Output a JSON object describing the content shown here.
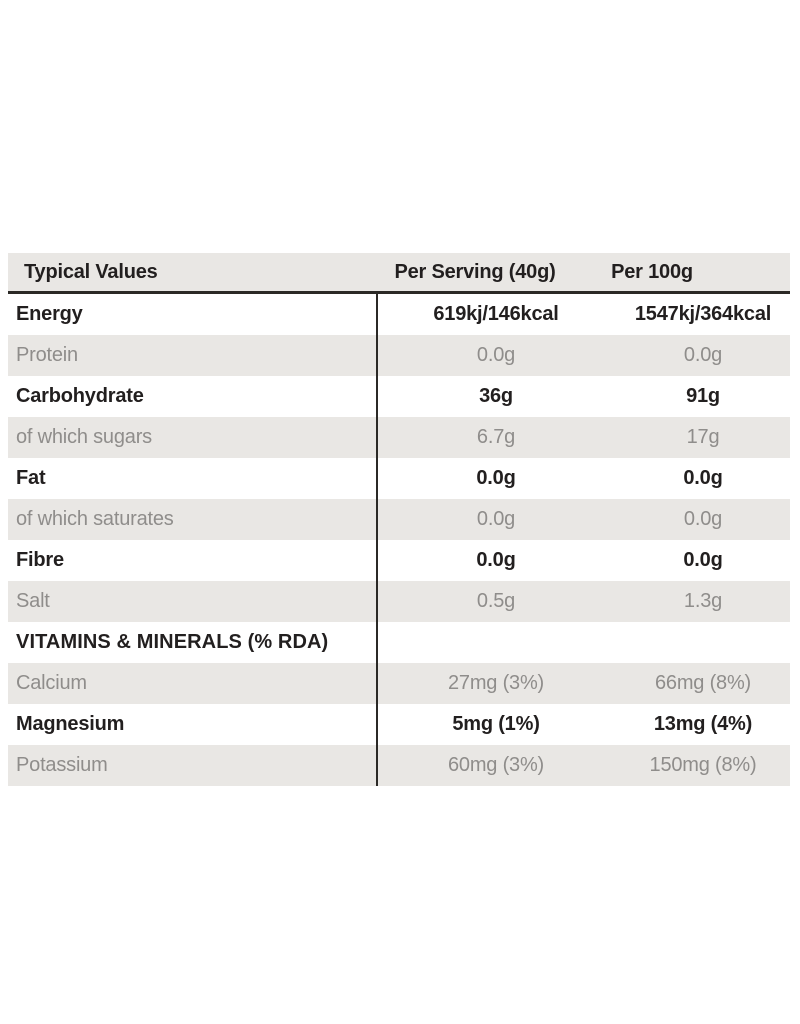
{
  "table": {
    "header": {
      "col1": "Typical Values",
      "col2": "Per Serving (40g)",
      "col3": "Per 100g"
    },
    "rows": [
      {
        "label": "Energy",
        "per_serving": "619kj/146kcal",
        "per_100g": "1547kj/364kcal",
        "style": "bold"
      },
      {
        "label": "Protein",
        "per_serving": "0.0g",
        "per_100g": "0.0g",
        "style": "muted"
      },
      {
        "label": "Carbohydrate",
        "per_serving": "36g",
        "per_100g": "91g",
        "style": "bold"
      },
      {
        "label": "of which sugars",
        "per_serving": "6.7g",
        "per_100g": "17g",
        "style": "muted"
      },
      {
        "label": "Fat",
        "per_serving": "0.0g",
        "per_100g": "0.0g",
        "style": "bold"
      },
      {
        "label": "of which saturates",
        "per_serving": "0.0g",
        "per_100g": "0.0g",
        "style": "muted"
      },
      {
        "label": "Fibre",
        "per_serving": "0.0g",
        "per_100g": "0.0g",
        "style": "bold"
      },
      {
        "label": "Salt",
        "per_serving": "0.5g",
        "per_100g": "1.3g",
        "style": "muted"
      },
      {
        "label": "VITAMINS & MINERALS (% RDA)",
        "per_serving": "",
        "per_100g": "",
        "style": "section"
      },
      {
        "label": "Calcium",
        "per_serving": "27mg (3%)",
        "per_100g": "66mg (8%)",
        "style": "muted"
      },
      {
        "label": "Magnesium",
        "per_serving": "5mg (1%)",
        "per_100g": "13mg (4%)",
        "style": "bold"
      },
      {
        "label": "Potassium",
        "per_serving": "60mg (3%)",
        "per_100g": "150mg (8%)",
        "style": "muted"
      }
    ],
    "colors": {
      "stripe_bg": "#e9e7e4",
      "text_dark": "#221f1f",
      "text_muted": "#8f8d8b",
      "line": "#2b2926"
    }
  }
}
